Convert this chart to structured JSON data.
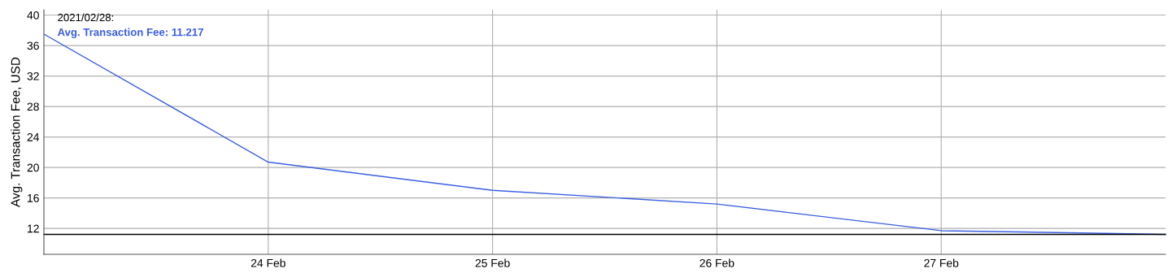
{
  "chart_data": {
    "type": "line",
    "ylabel": "Avg. Transaction Fee, USD",
    "x": [
      "2021-02-23",
      "2021-02-24",
      "2021-02-25",
      "2021-02-26",
      "2021-02-27",
      "2021-02-28"
    ],
    "series": [
      {
        "color": "#3b5fe0",
        "values": [
          37.5,
          20.7,
          17.0,
          15.2,
          11.7,
          11.217
        ]
      }
    ],
    "xlim": [
      "2021-02-23",
      "2021-02-28"
    ],
    "xticks": [
      {
        "value": "2021-02-24",
        "label": "24 Feb"
      },
      {
        "value": "2021-02-25",
        "label": "25 Feb"
      },
      {
        "value": "2021-02-26",
        "label": "26 Feb"
      },
      {
        "value": "2021-02-27",
        "label": "27 Feb"
      }
    ],
    "ylim": [
      8.6,
      40.7
    ],
    "yticks": [
      12,
      16,
      20,
      24,
      28,
      32,
      36,
      40
    ],
    "ref_lines": [
      {
        "axis": "y",
        "value": 11.217,
        "color": "#000000"
      }
    ],
    "annotations": [
      "2021/02/28:",
      "Avg. Transaction Fee: 11.217"
    ],
    "grid": true,
    "line_style": "solid"
  }
}
